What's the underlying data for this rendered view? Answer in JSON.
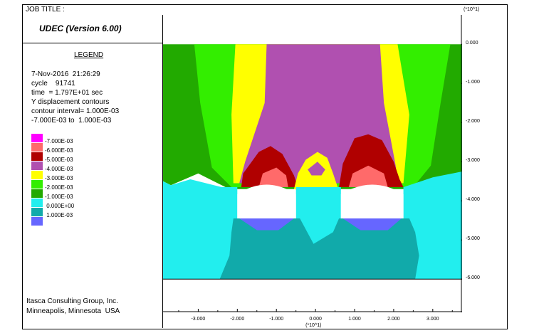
{
  "header": {
    "job_title": "JOB TITLE :",
    "scale_top": "(*10^1)"
  },
  "app": {
    "title": "UDEC (Version 6.00)"
  },
  "legend": {
    "title": "LEGEND",
    "lines": [
      "7-Nov-2016  21:26:29",
      "cycle    91741",
      "time  = 1.797E+01 sec",
      "Y displacement contours",
      "contour interval= 1.000E-03",
      "-7.000E-03 to  1.000E-03"
    ],
    "entries": [
      {
        "label": "-7.000E-03",
        "color": "#ff00ff"
      },
      {
        "label": "-6.000E-03",
        "color": "#ff6a6a"
      },
      {
        "label": "-5.000E-03",
        "color": "#b00000"
      },
      {
        "label": "-4.000E-03",
        "color": "#b050b0"
      },
      {
        "label": "-3.000E-03",
        "color": "#ffff00"
      },
      {
        "label": "-2.000E-03",
        "color": "#33ee00"
      },
      {
        "label": "-1.000E-03",
        "color": "#22aa00"
      },
      {
        "label": " 0.000E+00",
        "color": "#22eeee"
      },
      {
        "label": " 1.000E-03",
        "color": "#11aaaa"
      },
      {
        "label": "",
        "color": "#6666ff"
      }
    ]
  },
  "footer": {
    "company": "Itasca Consulting Group, Inc.",
    "location": "Minneapolis, Minnesota  USA"
  },
  "chart_data": {
    "type": "heatmap",
    "title": "Y displacement contours",
    "x_multiplier": "(*10^1)",
    "y_multiplier": "(*10^1)",
    "xlim": [
      -3.9,
      3.75
    ],
    "ylim": [
      -6.85,
      0.75
    ],
    "x_ticks": [
      -3.0,
      -2.0,
      -1.0,
      0.0,
      1.0,
      2.0,
      3.0
    ],
    "x_tick_labels": [
      "-3.000",
      "-2.000",
      "-1.000",
      "0.000",
      "1.000",
      "2.000",
      "3.000"
    ],
    "y_ticks": [
      0.0,
      -1.0,
      -2.0,
      -3.0,
      -4.0,
      -5.0,
      -6.0
    ],
    "y_tick_labels": [
      "0.000",
      "-1.000",
      "-2.000",
      "-3.000",
      "-4.000",
      "-5.000",
      "-6.000"
    ],
    "model_extent": {
      "x": [
        -3.9,
        3.75
      ],
      "y": [
        -6.0,
        0.0
      ]
    },
    "excavations": [
      {
        "x": [
          -2.0,
          -0.5
        ],
        "y": [
          -4.45,
          -3.65
        ]
      },
      {
        "x": [
          0.65,
          2.25
        ],
        "y": [
          -4.45,
          -3.65
        ]
      }
    ],
    "contour_levels": [
      -0.007,
      -0.006,
      -0.005,
      -0.004,
      -0.003,
      -0.002,
      -0.001,
      0.0,
      0.001
    ],
    "regions": [
      {
        "level": -0.001,
        "color": "#22aa00",
        "points": [
          [
            -3.9,
            0
          ],
          [
            3.75,
            0
          ],
          [
            3.75,
            -3.25
          ],
          [
            3.25,
            -3.4
          ],
          [
            2.6,
            -3.7
          ],
          [
            -2.2,
            -3.7
          ],
          [
            -3.0,
            -3.3
          ],
          [
            -3.7,
            -3.6
          ],
          [
            -3.9,
            -3.5
          ]
        ]
      },
      {
        "level": -0.002,
        "color": "#33ee00",
        "points": [
          [
            -3.1,
            0
          ],
          [
            3.45,
            0
          ],
          [
            3.2,
            -1.5
          ],
          [
            2.95,
            -3.1
          ],
          [
            2.5,
            -3.65
          ],
          [
            -2.15,
            -3.65
          ],
          [
            -2.65,
            -3.15
          ],
          [
            -2.95,
            -1.5
          ]
        ]
      },
      {
        "level": -0.003,
        "color": "#ffff00",
        "points": [
          [
            -2.05,
            0
          ],
          [
            2.1,
            0
          ],
          [
            2.4,
            -1.8
          ],
          [
            2.25,
            -3.55
          ],
          [
            -2.1,
            -3.55
          ],
          [
            -2.15,
            -1.8
          ]
        ]
      },
      {
        "level": -0.004,
        "color": "#b050b0",
        "points": [
          [
            -1.25,
            0
          ],
          [
            1.65,
            0
          ],
          [
            1.75,
            -1.5
          ],
          [
            2.05,
            -3.1
          ],
          [
            2.1,
            -3.55
          ],
          [
            -1.95,
            -3.55
          ],
          [
            -1.8,
            -3.0
          ],
          [
            -1.3,
            -1.5
          ]
        ]
      },
      {
        "level": -0.005,
        "color": "#b00000",
        "points": [
          [
            -1.9,
            -3.65
          ],
          [
            -1.85,
            -3.3
          ],
          [
            -1.45,
            -2.75
          ],
          [
            -1.15,
            -2.6
          ],
          [
            -0.85,
            -2.8
          ],
          [
            -0.55,
            -3.35
          ],
          [
            -0.45,
            -3.65
          ]
        ]
      },
      {
        "level": -0.005,
        "color": "#b00000",
        "points": [
          [
            0.6,
            -3.65
          ],
          [
            0.7,
            -3.05
          ],
          [
            1.0,
            -2.4
          ],
          [
            1.35,
            -2.3
          ],
          [
            1.7,
            -2.45
          ],
          [
            2.0,
            -3.0
          ],
          [
            2.15,
            -3.45
          ],
          [
            2.25,
            -3.65
          ]
        ]
      },
      {
        "level": -0.006,
        "color": "#ff6a6a",
        "points": [
          [
            -1.45,
            -3.65
          ],
          [
            -1.35,
            -3.3
          ],
          [
            -1.0,
            -3.15
          ],
          [
            -0.75,
            -3.35
          ],
          [
            -0.7,
            -3.65
          ]
        ]
      },
      {
        "level": -0.006,
        "color": "#ff6a6a",
        "points": [
          [
            0.85,
            -3.65
          ],
          [
            0.95,
            -3.3
          ],
          [
            1.35,
            -3.1
          ],
          [
            1.75,
            -3.3
          ],
          [
            1.85,
            -3.65
          ]
        ]
      },
      {
        "level": -0.003,
        "color": "#ffff00",
        "points": [
          [
            -0.55,
            -3.7
          ],
          [
            -0.45,
            -3.3
          ],
          [
            -0.25,
            -2.95
          ],
          [
            0.05,
            -2.75
          ],
          [
            0.3,
            -2.9
          ],
          [
            0.45,
            -3.3
          ],
          [
            0.6,
            -3.75
          ],
          [
            0.3,
            -3.8
          ],
          [
            -0.1,
            -3.8
          ]
        ]
      },
      {
        "level": -0.004,
        "color": "#b050b0",
        "points": [
          [
            -0.2,
            -3.2
          ],
          [
            0.05,
            -3.0
          ],
          [
            0.25,
            -3.2
          ],
          [
            0.15,
            -3.35
          ],
          [
            -0.1,
            -3.35
          ]
        ]
      },
      {
        "level": 0.0,
        "color": "#22eeee",
        "points": [
          [
            -3.9,
            -3.5
          ],
          [
            -3.7,
            -3.6
          ],
          [
            -3.2,
            -3.45
          ],
          [
            -2.4,
            -3.65
          ],
          [
            -2.0,
            -3.65
          ],
          [
            -2.0,
            -4.45
          ],
          [
            -0.5,
            -4.45
          ],
          [
            -0.5,
            -3.65
          ],
          [
            0.65,
            -3.65
          ],
          [
            0.65,
            -4.45
          ],
          [
            2.25,
            -4.45
          ],
          [
            2.25,
            -3.65
          ],
          [
            3.0,
            -3.4
          ],
          [
            3.75,
            -3.25
          ],
          [
            3.75,
            -6.0
          ],
          [
            -3.9,
            -6.0
          ]
        ]
      },
      {
        "level": 0.001,
        "color": "#11aaaa",
        "points": [
          [
            -2.1,
            -4.45
          ],
          [
            -0.4,
            -4.45
          ],
          [
            -0.05,
            -5.1
          ],
          [
            0.45,
            -4.8
          ],
          [
            0.6,
            -4.45
          ],
          [
            2.4,
            -4.45
          ],
          [
            2.55,
            -4.8
          ],
          [
            2.65,
            -5.4
          ],
          [
            2.55,
            -6.0
          ],
          [
            -2.45,
            -6.0
          ],
          [
            -2.2,
            -5.4
          ],
          [
            -2.15,
            -4.8
          ]
        ]
      },
      {
        "level": 0.002,
        "color": "#6666ff",
        "points": [
          [
            -1.95,
            -4.45
          ],
          [
            -0.55,
            -4.45
          ],
          [
            -0.95,
            -4.75
          ],
          [
            -1.5,
            -4.75
          ]
        ]
      },
      {
        "level": 0.002,
        "color": "#6666ff",
        "points": [
          [
            0.7,
            -4.45
          ],
          [
            2.2,
            -4.45
          ],
          [
            1.85,
            -4.75
          ],
          [
            1.15,
            -4.75
          ]
        ]
      }
    ]
  }
}
